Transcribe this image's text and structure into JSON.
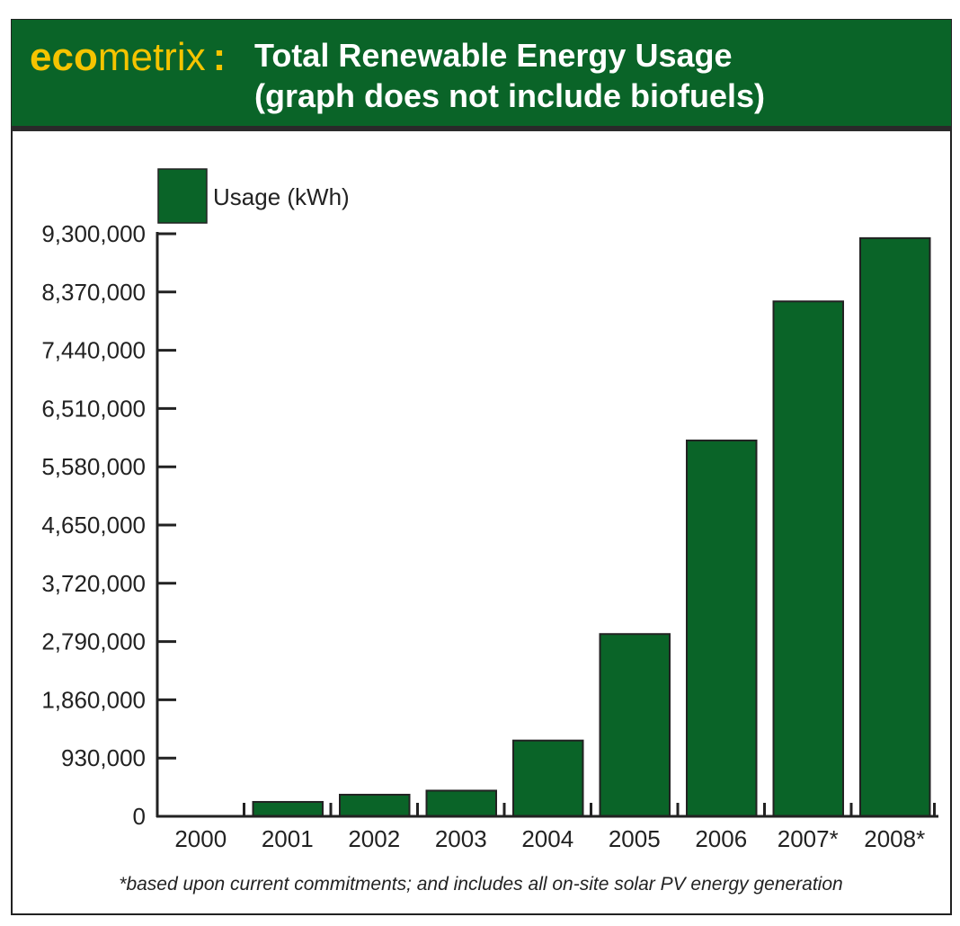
{
  "header": {
    "logo_bold": "eco",
    "logo_light": "metrix",
    "separator": ":",
    "title_line1": "Total Renewable Energy Usage",
    "title_line2": "(graph does not include biofuels)"
  },
  "colors": {
    "header_bg": "#0a6428",
    "bar": "#0a6428",
    "logo": "#f5c400"
  },
  "footnote": "*based upon current commitments; and includes all on-site solar PV energy generation",
  "chart_data": {
    "type": "bar",
    "title": "Total Renewable Energy Usage",
    "subtitle": "(graph does not include biofuels)",
    "categories": [
      "2000",
      "2001",
      "2002",
      "2003",
      "2004",
      "2005",
      "2006",
      "2007*",
      "2008*"
    ],
    "series": [
      {
        "name": "Usage (kWh)",
        "values": [
          0,
          230000,
          345000,
          410000,
          1210000,
          2910000,
          6000000,
          8220000,
          9230000
        ]
      }
    ],
    "ylim": [
      0,
      9300000
    ],
    "yticks": [
      "0",
      "930,000",
      "1,860,000",
      "2,790,000",
      "3,720,000",
      "4,650,000",
      "5,580,000",
      "6,510,000",
      "7,440,000",
      "8,370,000",
      "9,300,000"
    ],
    "ytick_values": [
      0,
      930000,
      1860000,
      2790000,
      3720000,
      4650000,
      5580000,
      6510000,
      7440000,
      8370000,
      9300000
    ],
    "legend": "top-left",
    "grid": false
  }
}
